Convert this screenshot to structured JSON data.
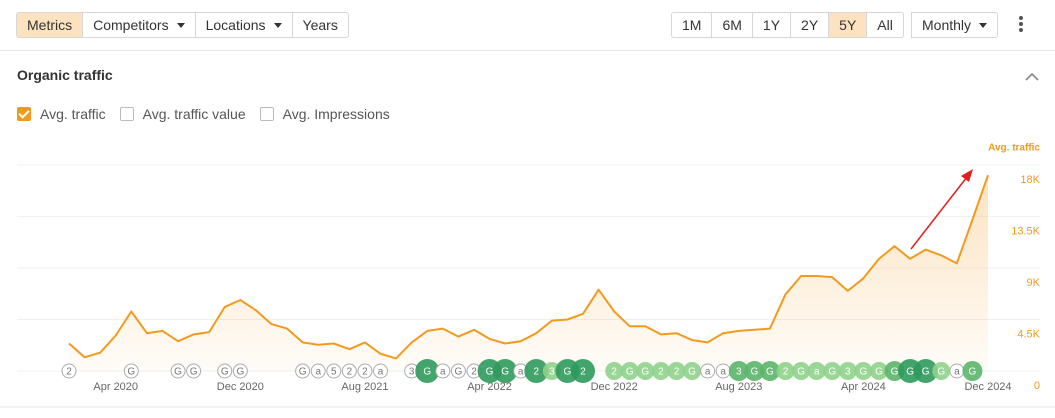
{
  "toolbar": {
    "left": [
      {
        "label": "Metrics",
        "active": true,
        "dropdown": false
      },
      {
        "label": "Competitors",
        "active": false,
        "dropdown": true
      },
      {
        "label": "Locations",
        "active": false,
        "dropdown": true
      },
      {
        "label": "Years",
        "active": false,
        "dropdown": false
      }
    ],
    "ranges": [
      {
        "label": "1M",
        "active": false
      },
      {
        "label": "6M",
        "active": false
      },
      {
        "label": "1Y",
        "active": false
      },
      {
        "label": "2Y",
        "active": false
      },
      {
        "label": "5Y",
        "active": true
      },
      {
        "label": "All",
        "active": false
      }
    ],
    "interval": "Monthly"
  },
  "section": {
    "title": "Organic traffic",
    "checkboxes": [
      {
        "label": "Avg. traffic",
        "checked": true
      },
      {
        "label": "Avg. traffic value",
        "checked": false
      },
      {
        "label": "Avg. Impressions",
        "checked": false
      }
    ]
  },
  "chart_data": {
    "type": "line",
    "y_axis_title": "Avg. traffic",
    "y_axis_side": "right",
    "color": "#f39a1e",
    "grid": true,
    "categories": [
      null,
      null,
      null,
      "Apr 2020",
      null,
      null,
      null,
      null,
      null,
      null,
      null,
      "Dec 2020",
      null,
      null,
      null,
      null,
      null,
      null,
      null,
      "Aug 2021",
      null,
      null,
      null,
      null,
      null,
      null,
      null,
      "Apr 2022",
      null,
      null,
      null,
      null,
      null,
      null,
      null,
      "Dec 2022",
      null,
      null,
      null,
      null,
      null,
      null,
      null,
      "Aug 2023",
      null,
      null,
      null,
      null,
      null,
      null,
      null,
      "Apr 2024",
      null,
      null,
      null,
      null,
      null,
      null,
      null,
      "Dec 2024"
    ],
    "values": [
      2400,
      1200,
      1600,
      3100,
      5200,
      3300,
      3500,
      2600,
      3200,
      3400,
      5600,
      6200,
      5300,
      4100,
      3700,
      2500,
      2300,
      2400,
      1900,
      2500,
      1500,
      1100,
      2500,
      3500,
      3700,
      3000,
      3600,
      2800,
      2400,
      2600,
      3300,
      4400,
      4500,
      5000,
      7100,
      5200,
      3900,
      3900,
      3200,
      3300,
      2700,
      2500,
      3300,
      3500,
      3600,
      3700,
      6700,
      8300,
      8300,
      8200,
      7000,
      8100,
      9800,
      10900,
      9800,
      10600,
      10100,
      9400,
      13200,
      17100
    ],
    "ylim": [
      0,
      20000
    ],
    "yticks": [
      0,
      {
        "value": 4500,
        "label": "4.5K"
      },
      {
        "value": 9000,
        "label": "9K"
      },
      {
        "value": 13500,
        "label": "13.5K"
      },
      {
        "value": 18000,
        "label": "18K"
      }
    ],
    "event_labels": [
      "2",
      null,
      null,
      null,
      "G",
      null,
      null,
      "G",
      "G",
      null,
      "G",
      "G",
      null,
      null,
      null,
      "G",
      "a",
      "5",
      "2",
      "2",
      "a",
      null,
      "3",
      "G",
      "a",
      "G",
      "2",
      "G",
      "G",
      "a",
      "2",
      "3",
      "G",
      "2",
      null,
      "2",
      "G",
      "G",
      "2",
      "2",
      "G",
      "a",
      "a",
      "3",
      "G",
      "G",
      "2",
      "G",
      "a",
      "G",
      "3",
      "G",
      "G",
      "G",
      "G",
      "G",
      "G",
      "a",
      "G",
      null
    ],
    "event_colors": [
      "#ffffff",
      null,
      null,
      null,
      "#ffffff",
      null,
      null,
      "#ffffff",
      "#ffffff",
      null,
      "#ffffff",
      "#ffffff",
      null,
      null,
      null,
      "#ffffff",
      "#ffffff",
      "#ffffff",
      "#ffffff",
      "#ffffff",
      "#ffffff",
      null,
      "#ffffff",
      "#2f9a5c",
      "#ffffff",
      "#ffffff",
      "#ffffff",
      "#2f9a5c",
      "#2f9a5c",
      "#ffffff",
      "#2f9a5c",
      "#8fd18a",
      "#2f9a5c",
      "#2f9a5c",
      null,
      "#8fd18a",
      "#8fd18a",
      "#8fd18a",
      "#8fd18a",
      "#8fd18a",
      "#8fd18a",
      "#ffffff",
      "#ffffff",
      "#5bb56a",
      "#5bb56a",
      "#5bb56a",
      "#8fd18a",
      "#8fd18a",
      "#8fd18a",
      "#8fd18a",
      "#8fd18a",
      "#8fd18a",
      "#8fd18a",
      "#5bb56a",
      "#2f9a5c",
      "#2f9a5c",
      "#8fd18a",
      "#ffffff",
      "#5bb56a",
      null
    ]
  }
}
